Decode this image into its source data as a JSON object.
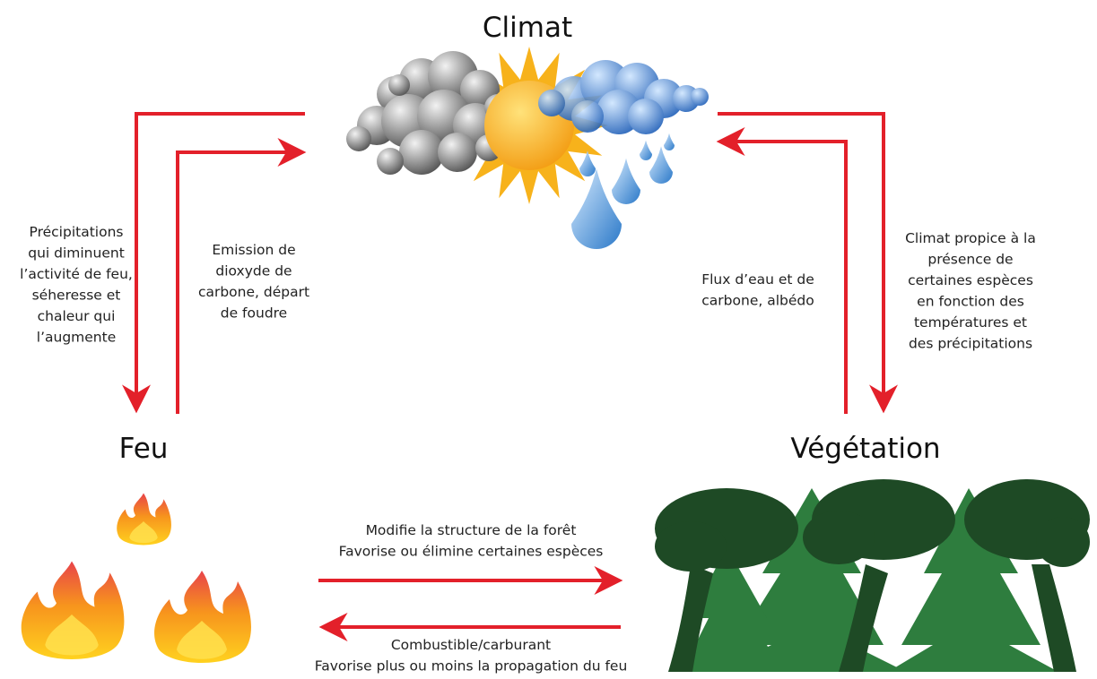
{
  "nodes": [
    {
      "label": "Climat"
    },
    {
      "label": "Feu"
    },
    {
      "label": "Végétation"
    }
  ],
  "edges": [
    {
      "label": [
        "Précipitations",
        "qui diminuent",
        "l’activité de feu,",
        "séheresse et",
        "chaleur qui",
        "l’augmente"
      ]
    },
    {
      "label": [
        "Emission de",
        "dioxyde de",
        "carbone, départ",
        "de foudre"
      ]
    },
    {
      "label": [
        "Flux d’eau et de",
        "carbone, albédo"
      ]
    },
    {
      "label": [
        "Climat propice à la",
        "présence de",
        "certaines espèces",
        "en fonction des",
        "températures et",
        "des précipitations"
      ]
    },
    {
      "label": [
        "Modifie la structure de la forêt",
        "Favorise ou élimine certaines espèces"
      ]
    },
    {
      "label": [
        "Combustible/carburant",
        "Favorise plus ou moins la propagation du feu"
      ]
    }
  ]
}
